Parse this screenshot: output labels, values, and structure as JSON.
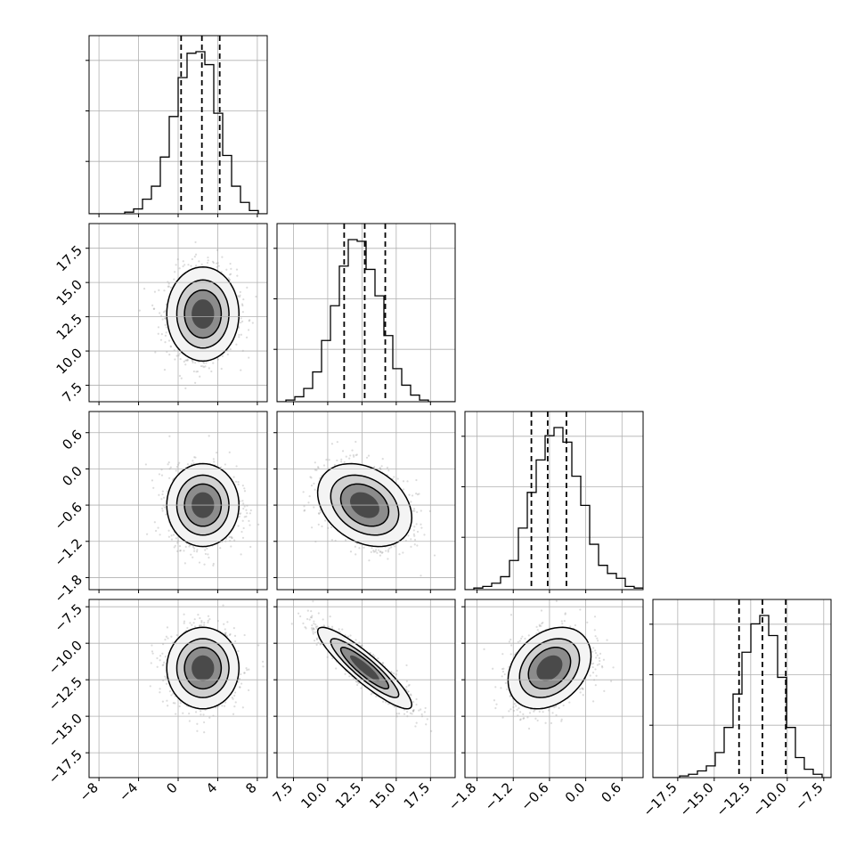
{
  "chart_data": {
    "type": "corner",
    "grid": true,
    "n_params": 4,
    "params": [
      {
        "range": [
          -9,
          9
        ],
        "ticks": [
          -8,
          -4,
          0,
          4,
          8
        ],
        "tick_labels": [
          "−8",
          "−4",
          "0",
          "4",
          "8"
        ],
        "mean": 2.5,
        "sd": 1.7,
        "quantiles": [
          0.3,
          2.4,
          4.2
        ]
      },
      {
        "range": [
          6.3,
          19.3
        ],
        "ticks": [
          7.5,
          10.0,
          12.5,
          15.0,
          17.5
        ],
        "tick_labels": [
          "7.5",
          "10.0",
          "12.5",
          "15.0",
          "17.5"
        ],
        "mean": 12.7,
        "sd": 1.6,
        "quantiles": [
          11.2,
          12.7,
          14.2
        ]
      },
      {
        "range": [
          -2.0,
          0.95
        ],
        "ticks": [
          -1.8,
          -1.2,
          -0.6,
          0.0,
          0.6
        ],
        "tick_labels": [
          "−1.8",
          "−1.2",
          "−0.6",
          "0.0",
          "0.6"
        ],
        "mean": -0.6,
        "sd": 0.32,
        "quantiles": [
          -0.9,
          -0.63,
          -0.32
        ]
      },
      {
        "range": [
          -19.2,
          -7.0
        ],
        "ticks": [
          -17.5,
          -15.0,
          -12.5,
          -10.0,
          -7.5
        ],
        "tick_labels": [
          "−17.5",
          "−15.0",
          "−12.5",
          "−10.0",
          "−7.5"
        ],
        "mean": -11.7,
        "sd": 1.3,
        "quantiles": [
          -13.3,
          -11.7,
          -10.1
        ]
      }
    ],
    "correlations": [
      [
        1,
        0,
        0,
        0
      ],
      [
        0,
        1,
        -0.3,
        -0.9
      ],
      [
        0,
        -0.3,
        1,
        0.3
      ],
      [
        0,
        -0.9,
        0.3,
        1
      ]
    ],
    "histograms": [
      [
        0,
        0,
        0,
        0,
        1,
        3,
        9,
        17,
        35,
        60,
        84,
        99,
        100,
        92,
        62,
        36,
        17,
        7,
        2,
        0
      ],
      [
        0,
        1,
        3,
        8,
        18,
        37,
        58,
        82,
        98,
        97,
        80,
        64,
        40,
        20,
        10,
        4,
        1,
        0,
        0,
        0
      ],
      [
        0,
        1,
        2,
        4,
        8,
        18,
        38,
        60,
        80,
        95,
        100,
        91,
        70,
        52,
        28,
        15,
        10,
        7,
        2,
        1
      ],
      [
        0,
        0,
        0,
        1,
        2,
        4,
        7,
        15,
        30,
        50,
        75,
        92,
        97,
        85,
        60,
        30,
        12,
        5,
        2,
        0
      ]
    ]
  }
}
